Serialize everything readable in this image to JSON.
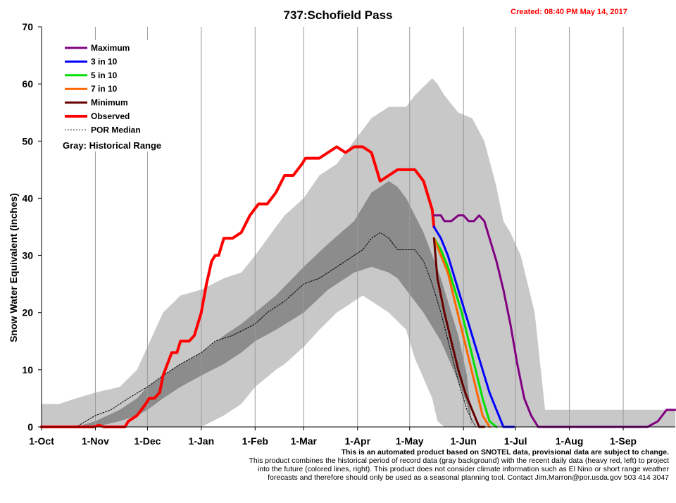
{
  "header": {
    "title": "737:Schofield Pass",
    "created": "Created: 08:40 PM May 14, 2017"
  },
  "footer": {
    "line1": "This is an automated product based on SNOTEL data, provisional data are subject to change.",
    "line2": "This product combines the historical period of record data (gray background) with the recent daily data (heavy red, left) to project",
    "line3": "into the future (colored lines, right). This product does not consider climate information such as El Nino or short range weather",
    "line4": "forecasts and therefore should only be used as a seasonal planning tool. Contact Jim.Marron@por.usda.gov 503 414 3047"
  },
  "chart_data": {
    "type": "line",
    "title": "737:Schofield Pass",
    "xlabel": "",
    "ylabel": "Snow Water Equivalent (inches)",
    "ylim": [
      0,
      70
    ],
    "yticks": [
      0,
      10,
      20,
      30,
      40,
      50,
      60,
      70
    ],
    "xlim_days": [
      0,
      365
    ],
    "xticks": [
      {
        "label": "1-Oct",
        "day": 0
      },
      {
        "label": "1-Nov",
        "day": 31
      },
      {
        "label": "1-Dec",
        "day": 61
      },
      {
        "label": "1-Jan",
        "day": 92
      },
      {
        "label": "1-Feb",
        "day": 123
      },
      {
        "label": "1-Mar",
        "day": 151
      },
      {
        "label": "1-Apr",
        "day": 182
      },
      {
        "label": "1-May",
        "day": 212
      },
      {
        "label": "1-Jun",
        "day": 243
      },
      {
        "label": "1-Jul",
        "day": 273
      },
      {
        "label": "1-Aug",
        "day": 304
      },
      {
        "label": "1-Sep",
        "day": 335
      }
    ],
    "grid": "vertical",
    "legend_position": "top-left",
    "legend": [
      {
        "name": "Maximum",
        "color": "#800080",
        "style": "solid"
      },
      {
        "name": "3 in 10",
        "color": "#0000ff",
        "style": "solid"
      },
      {
        "name": "5 in 10",
        "color": "#00e000",
        "style": "solid"
      },
      {
        "name": "7 in 10",
        "color": "#ff6600",
        "style": "solid"
      },
      {
        "name": "Minimum",
        "color": "#660000",
        "style": "solid"
      },
      {
        "name": "Observed",
        "color": "#ff0000",
        "style": "solid"
      },
      {
        "name": "POR Median",
        "color": "#000000",
        "style": "dashed"
      }
    ],
    "legend_note": "Gray: Historical Range",
    "bands": [
      {
        "name": "Historical Range",
        "color": "#c8c8c8",
        "x": [
          0,
          10,
          20,
          31,
          45,
          55,
          61,
          70,
          80,
          92,
          105,
          115,
          123,
          135,
          140,
          151,
          160,
          170,
          180,
          185,
          190,
          200,
          210,
          215,
          225,
          228,
          232,
          240,
          248,
          255,
          262,
          266,
          270,
          276,
          284,
          290,
          365
        ],
        "upper": [
          4,
          4,
          5,
          6,
          7,
          10,
          14,
          20,
          23,
          24,
          26,
          27,
          30,
          35,
          37,
          40,
          44,
          46,
          50,
          52,
          54,
          56,
          56,
          58,
          61,
          60,
          58,
          55,
          54,
          50,
          42,
          36,
          34,
          30,
          20,
          3,
          3
        ],
        "lower": [
          0,
          0,
          0,
          0,
          0,
          0,
          0,
          0,
          0,
          0,
          2,
          4,
          7,
          10,
          11,
          14,
          17,
          20,
          22,
          23,
          22,
          20,
          17,
          12,
          5,
          1,
          0,
          0,
          0,
          0,
          0,
          0,
          0,
          0,
          0,
          0,
          0
        ]
      },
      {
        "name": "Inner Range",
        "color": "#8c8c8c",
        "x": [
          0,
          20,
          31,
          45,
          55,
          61,
          70,
          80,
          92,
          105,
          115,
          123,
          135,
          151,
          165,
          180,
          190,
          200,
          205,
          210,
          220,
          230,
          240,
          245,
          248
        ],
        "upper": [
          0,
          0,
          1,
          3,
          5,
          7,
          9,
          11,
          13,
          16,
          18,
          20,
          23,
          28,
          32,
          36,
          41,
          43,
          42,
          40,
          34,
          26,
          16,
          9,
          0
        ],
        "lower": [
          0,
          0,
          0,
          1,
          2,
          3,
          5,
          7,
          9,
          11,
          13,
          15,
          17,
          20,
          24,
          27,
          28,
          27,
          26,
          24,
          20,
          15,
          8,
          4,
          0
        ]
      }
    ],
    "series": [
      {
        "name": "POR Median",
        "color": "#000000",
        "dashed": true,
        "width": 1,
        "x": [
          0,
          20,
          31,
          40,
          50,
          61,
          70,
          80,
          92,
          100,
          110,
          123,
          130,
          140,
          151,
          160,
          170,
          180,
          185,
          190,
          195,
          200,
          205,
          210,
          215,
          220,
          225,
          230,
          235,
          240,
          245,
          250
        ],
        "values": [
          0,
          0,
          2,
          3,
          5,
          7,
          9,
          11,
          13,
          15,
          16,
          18,
          20,
          22,
          25,
          26,
          28,
          30,
          31,
          33,
          34,
          33,
          31,
          31,
          31,
          29,
          25,
          20,
          14,
          8,
          3,
          0
        ]
      },
      {
        "name": "Observed",
        "color": "#ff0000",
        "width": 4,
        "x": [
          0,
          30,
          33,
          36,
          48,
          50,
          55,
          60,
          62,
          65,
          68,
          70,
          75,
          78,
          80,
          85,
          88,
          92,
          95,
          98,
          100,
          102,
          105,
          110,
          115,
          120,
          125,
          130,
          135,
          140,
          145,
          150,
          152,
          156,
          160,
          165,
          170,
          175,
          180,
          185,
          190,
          195,
          200,
          205,
          210,
          215,
          220,
          225,
          226
        ],
        "values": [
          0,
          0,
          0.3,
          0,
          0,
          1,
          2,
          4,
          5,
          5,
          6,
          9,
          13,
          13,
          15,
          15,
          16,
          20,
          25,
          29,
          30,
          30,
          33,
          33,
          34,
          37,
          39,
          39,
          41,
          44,
          44,
          46,
          47,
          47,
          47,
          48,
          49,
          48,
          49,
          49,
          48,
          43,
          44,
          45,
          45,
          45,
          43,
          38,
          35
        ]
      },
      {
        "name": "Maximum",
        "color": "#800080",
        "width": 3,
        "x": [
          226,
          230,
          232,
          236,
          240,
          243,
          246,
          249,
          252,
          255,
          258,
          262,
          266,
          270,
          274,
          278,
          282,
          286,
          290,
          330,
          340,
          345,
          349,
          355,
          360,
          365
        ],
        "values": [
          37,
          37,
          36,
          36,
          37,
          37,
          36,
          36,
          37,
          36,
          33,
          29,
          24,
          18,
          11,
          5,
          2,
          0,
          0,
          0,
          0,
          0,
          0,
          1,
          3,
          3
        ]
      },
      {
        "name": "3 in 10",
        "color": "#0000ff",
        "width": 3,
        "x": [
          226,
          230,
          234,
          238,
          242,
          246,
          250,
          254,
          258,
          262,
          266,
          270,
          272
        ],
        "values": [
          35,
          33,
          30,
          26,
          22,
          18,
          14,
          10,
          6,
          3,
          0,
          0,
          0
        ]
      },
      {
        "name": "5 in 10",
        "color": "#00e000",
        "width": 3,
        "x": [
          226,
          230,
          234,
          238,
          242,
          246,
          250,
          254,
          258,
          262
        ],
        "values": [
          33,
          31,
          28,
          24,
          20,
          15,
          10,
          5,
          1,
          0
        ]
      },
      {
        "name": "7 in 10",
        "color": "#ff6600",
        "width": 3,
        "x": [
          226,
          230,
          234,
          238,
          242,
          246,
          250,
          254,
          258
        ],
        "values": [
          33,
          30,
          27,
          22,
          17,
          12,
          7,
          2,
          0
        ]
      },
      {
        "name": "Minimum",
        "color": "#660000",
        "width": 3,
        "x": [
          226,
          228,
          232,
          236,
          240,
          244,
          248,
          252,
          255
        ],
        "values": [
          33,
          26,
          20,
          15,
          10,
          6,
          3,
          0,
          0
        ]
      }
    ]
  }
}
